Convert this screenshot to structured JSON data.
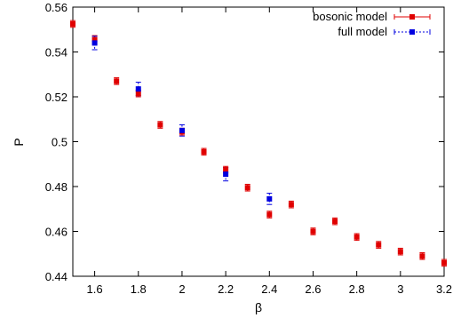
{
  "chart_data": {
    "type": "scatter",
    "xlabel": "β",
    "ylabel": "P",
    "xlim": [
      1.5,
      3.2
    ],
    "ylim": [
      0.44,
      0.56
    ],
    "xticks": [
      "1.6",
      "1.8",
      "2",
      "2.2",
      "2.4",
      "2.6",
      "2.8",
      "3",
      "3.2"
    ],
    "yticks": [
      "0.44",
      "0.46",
      "0.48",
      "0.5",
      "0.52",
      "0.54",
      "0.56"
    ],
    "grid": false,
    "legend_position": "top-right",
    "error_bars": true,
    "series": [
      {
        "name": "bosonic model",
        "color": "#e00000",
        "marker": "square",
        "x": [
          1.5,
          1.6,
          1.7,
          1.8,
          1.9,
          2.0,
          2.1,
          2.2,
          2.3,
          2.4,
          2.5,
          2.6,
          2.7,
          2.8,
          2.9,
          3.0,
          3.1,
          3.2
        ],
        "y": [
          0.5525,
          0.5455,
          0.527,
          0.5215,
          0.5075,
          0.5045,
          0.4955,
          0.4875,
          0.4795,
          0.4675,
          0.472,
          0.46,
          0.4645,
          0.4575,
          0.454,
          0.451,
          0.449,
          0.446
        ],
        "err": [
          0.0015,
          0.0018,
          0.0015,
          0.0015,
          0.0015,
          0.0015,
          0.0015,
          0.0015,
          0.0015,
          0.0015,
          0.0015,
          0.0015,
          0.0015,
          0.0015,
          0.0015,
          0.0015,
          0.0015,
          0.0015
        ]
      },
      {
        "name": "full model",
        "color": "#0000e0",
        "marker": "square",
        "x": [
          1.6,
          1.8,
          2.0,
          2.2,
          2.4
        ],
        "y": [
          0.544,
          0.5235,
          0.505,
          0.4855,
          0.4745
        ],
        "err": [
          0.003,
          0.003,
          0.0025,
          0.003,
          0.0025
        ]
      }
    ]
  }
}
